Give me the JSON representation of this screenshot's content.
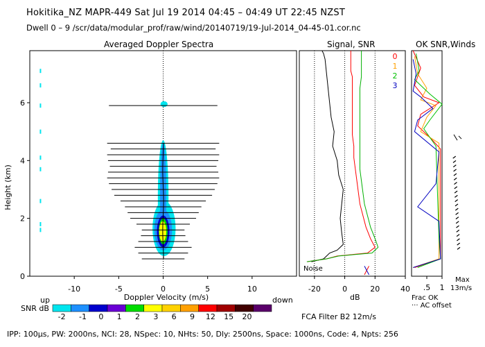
{
  "header": {
    "line1": "Hokitika_NZ   MAPR-449   Sat Jul 19 2014 04:45 – 04:49 UT 22:45 NZST",
    "line2": "Dwell   0  –   9    /scr/data/modular_prof/raw/wind/20140719/19-Jul-2014_04-45-01.cor.nc"
  },
  "footer": {
    "params": "IPP: 100µs,  PW: 2000ns,  NCI:  28,  NSpec: 10, NHts: 50,  Dly: 2500ns,  Space: 1000ns,  Code: 4,  Npts: 256",
    "fca": "FCA Filter B2 12m/s"
  },
  "colors": {
    "snr_scale": [
      "#00e5ee",
      "#1e90ff",
      "#0000cd",
      "#6a00d5",
      "#00dd00",
      "#ffff00",
      "#ffd200",
      "#ffa000",
      "#ff0000",
      "#a00000",
      "#400000",
      "#5a006a"
    ]
  },
  "chart_data": [
    {
      "type": "heatmap",
      "title": "Averaged Doppler Spectra",
      "xlabel": "Doppler Velocity (m/s)",
      "ylabel": "Height (km)",
      "xlim": [
        -15,
        15
      ],
      "ylim": [
        0,
        7.8
      ],
      "xticks": [
        "-10",
        "-5",
        "0",
        "5",
        "10"
      ],
      "yticks": [
        "0",
        "2",
        "4",
        "6"
      ],
      "annotations": {
        "left": "up",
        "right": "down"
      },
      "colorbar": {
        "label": "SNR dB",
        "ticks": [
          "-2",
          "-1",
          "0",
          "1",
          "2",
          "3",
          "6",
          "9",
          "12",
          "15",
          "20"
        ]
      },
      "spectra": [
        {
          "height": 0.6,
          "width": 4.8
        },
        {
          "height": 0.8,
          "width": 5.6
        },
        {
          "height": 1.0,
          "width": 6.4
        },
        {
          "height": 1.2,
          "width": 5.6
        },
        {
          "height": 1.4,
          "width": 5.0
        },
        {
          "height": 1.6,
          "width": 4.8
        },
        {
          "height": 1.8,
          "width": 6.0
        },
        {
          "height": 2.0,
          "width": 7.4
        },
        {
          "height": 2.2,
          "width": 8.0
        },
        {
          "height": 2.4,
          "width": 8.6
        },
        {
          "height": 2.6,
          "width": 9.6
        },
        {
          "height": 2.8,
          "width": 11.0
        },
        {
          "height": 3.0,
          "width": 11.6
        },
        {
          "height": 3.2,
          "width": 12.2
        },
        {
          "height": 3.4,
          "width": 12.6
        },
        {
          "height": 3.6,
          "width": 12.4
        },
        {
          "height": 3.8,
          "width": 12.0
        },
        {
          "height": 4.0,
          "width": 12.4
        },
        {
          "height": 4.2,
          "width": 12.6
        },
        {
          "height": 4.4,
          "width": 11.8
        },
        {
          "height": 4.6,
          "width": 12.6
        },
        {
          "height": 5.9,
          "width": 12.2
        }
      ]
    },
    {
      "type": "line",
      "title": "Signal, SNR",
      "xlabel": "dB",
      "xlim": [
        -30,
        40
      ],
      "ylim": [
        0,
        7.8
      ],
      "xticks": [
        "-20",
        "0",
        "20",
        "40"
      ],
      "annotations": {
        "noise": "Noise"
      },
      "series": [
        {
          "color": "#000000",
          "x": [
            -22,
            -14,
            -12,
            -10,
            -5,
            -1,
            -2,
            -3,
            -2,
            -1,
            -4,
            -5,
            -8,
            -7,
            -9,
            -10,
            -11,
            -12,
            -13,
            -14,
            -15,
            -16,
            -17,
            -18,
            -19
          ],
          "y": [
            0.5,
            0.6,
            0.7,
            0.8,
            0.9,
            1.1,
            1.5,
            2.0,
            2.5,
            3.0,
            3.5,
            4.0,
            4.5,
            5.0,
            5.5,
            6.0,
            6.5,
            7.0,
            7.5,
            7.7,
            7.8,
            7.8,
            7.8,
            7.8,
            7.8
          ]
        },
        {
          "color": "#ff0000",
          "x": [
            -25,
            -12,
            -5,
            15,
            20,
            17,
            14,
            12,
            10,
            9,
            8,
            7,
            6,
            6,
            5,
            5,
            5,
            5,
            5,
            5,
            4,
            4,
            4,
            4,
            4
          ],
          "y": [
            0.5,
            0.6,
            0.7,
            0.8,
            1.0,
            1.3,
            1.7,
            2.1,
            2.5,
            2.9,
            3.3,
            3.7,
            4.1,
            4.5,
            4.9,
            5.3,
            5.7,
            6.1,
            6.5,
            6.9,
            7.1,
            7.3,
            7.5,
            7.7,
            7.8
          ]
        },
        {
          "color": "#00b000",
          "x": [
            -25,
            -12,
            -4,
            18,
            22,
            20,
            17,
            15,
            13,
            12,
            11,
            10,
            10,
            10,
            10,
            10,
            10,
            10,
            10,
            11,
            11,
            11,
            11,
            11,
            11
          ],
          "y": [
            0.5,
            0.6,
            0.7,
            0.8,
            1.0,
            1.3,
            1.7,
            2.1,
            2.5,
            2.9,
            3.3,
            3.7,
            4.1,
            4.5,
            4.9,
            5.3,
            5.7,
            6.1,
            6.5,
            6.9,
            7.1,
            7.3,
            7.5,
            7.7,
            7.8
          ]
        }
      ]
    },
    {
      "type": "line",
      "title": "OK SNR,Winds",
      "xlabel": "Frac OK",
      "xlim": [
        0,
        1
      ],
      "ylim": [
        0,
        7.8
      ],
      "xticks": [
        ".5",
        "1"
      ],
      "legend": [
        "0",
        "1",
        "2",
        "3"
      ],
      "legend_colors": [
        "#ff0000",
        "#ffa000",
        "#00c000",
        "#0000c0"
      ],
      "annotations": {
        "offset": "··· AC offset",
        "max": "Max",
        "max_value": "13m/s"
      }
    }
  ]
}
